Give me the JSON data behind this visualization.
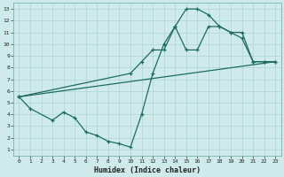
{
  "xlabel": "Humidex (Indice chaleur)",
  "bg_color": "#ceeaea",
  "line_color": "#1e6b60",
  "grid_color": "#aed4d4",
  "xlim": [
    -0.5,
    23.5
  ],
  "ylim": [
    0.5,
    13.5
  ],
  "xticks": [
    0,
    1,
    2,
    3,
    4,
    5,
    6,
    7,
    8,
    9,
    10,
    11,
    12,
    13,
    14,
    15,
    16,
    17,
    18,
    19,
    20,
    21,
    22,
    23
  ],
  "yticks": [
    1,
    2,
    3,
    4,
    5,
    6,
    7,
    8,
    9,
    10,
    11,
    12,
    13
  ],
  "line1_wavy": {
    "x": [
      0,
      1,
      3,
      4,
      5,
      6,
      7,
      8,
      9,
      10,
      11,
      12,
      13,
      14,
      15,
      16,
      17,
      18,
      19,
      20,
      21,
      22,
      23
    ],
    "y": [
      5.5,
      4.5,
      3.5,
      4.2,
      3.7,
      2.5,
      2.2,
      1.7,
      1.5,
      1.2,
      4.0,
      7.5,
      10.0,
      11.5,
      13.0,
      13.0,
      12.5,
      11.5,
      11.0,
      10.5,
      8.5,
      8.5,
      8.5
    ]
  },
  "line2_arc": {
    "x": [
      0,
      10,
      11,
      12,
      13,
      14,
      15,
      16,
      17,
      18,
      19,
      20,
      21,
      22,
      23
    ],
    "y": [
      5.5,
      7.5,
      8.5,
      9.5,
      9.5,
      11.5,
      9.5,
      9.5,
      11.5,
      11.5,
      11.0,
      11.0,
      8.5,
      8.5,
      8.5
    ]
  },
  "line3_diag": {
    "x": [
      0,
      23
    ],
    "y": [
      5.5,
      8.5
    ]
  }
}
